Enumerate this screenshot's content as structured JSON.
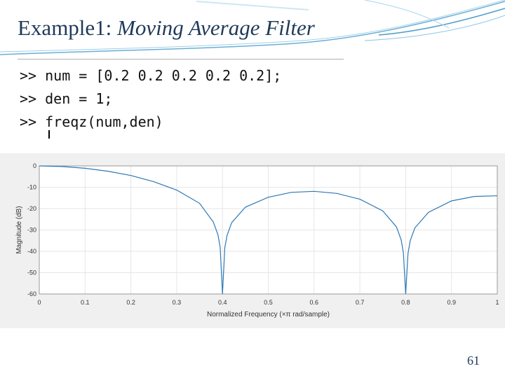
{
  "slide": {
    "title_prefix": "Example1: ",
    "title_italic": "Moving Average Filter",
    "page_number": "61"
  },
  "code": {
    "lines": [
      ">> num = [0.2 0.2 0.2 0.2 0.2];",
      ">> den = 1;",
      ">> freqz(num,den)"
    ]
  },
  "colors": {
    "title": "#1f3a5a",
    "plot_line": "#2f78b4",
    "plot_bg": "#f0f0f0",
    "axes_bg": "#ffffff",
    "grid": "#e6e6e6"
  },
  "chart_data": {
    "type": "line",
    "title": "",
    "xlabel": "Normalized Frequency  (×π rad/sample)",
    "ylabel": "Magnitude (dB)",
    "xlim": [
      0,
      1
    ],
    "ylim": [
      -60,
      0
    ],
    "xticks": [
      "0",
      "0.1",
      "0.2",
      "0.3",
      "0.4",
      "0.5",
      "0.6",
      "0.7",
      "0.8",
      "0.9",
      "1"
    ],
    "yticks": [
      "0",
      "-10",
      "-20",
      "-30",
      "-40",
      "-50",
      "-60"
    ],
    "grid": true,
    "series": [
      {
        "x": [
          0,
          0.05,
          0.1,
          0.15,
          0.2,
          0.25,
          0.3,
          0.35,
          0.38,
          0.39,
          0.395,
          0.4,
          0.405,
          0.41,
          0.42,
          0.45,
          0.5,
          0.55,
          0.6,
          0.65,
          0.7,
          0.75,
          0.78,
          0.79,
          0.795,
          0.8,
          0.805,
          0.81,
          0.82,
          0.85,
          0.9,
          0.95,
          1.0
        ],
        "values": [
          0,
          -0.3,
          -1.1,
          -2.5,
          -4.5,
          -7.4,
          -11.3,
          -17.5,
          -26.3,
          -32.2,
          -38.1,
          -60,
          -38.4,
          -32.6,
          -26.6,
          -19.3,
          -14.7,
          -12.4,
          -11.9,
          -12.9,
          -15.6,
          -21.1,
          -28.6,
          -34.6,
          -40.6,
          -60,
          -41.0,
          -35.0,
          -29.0,
          -21.7,
          -16.4,
          -14.3,
          -14.0
        ]
      }
    ]
  }
}
